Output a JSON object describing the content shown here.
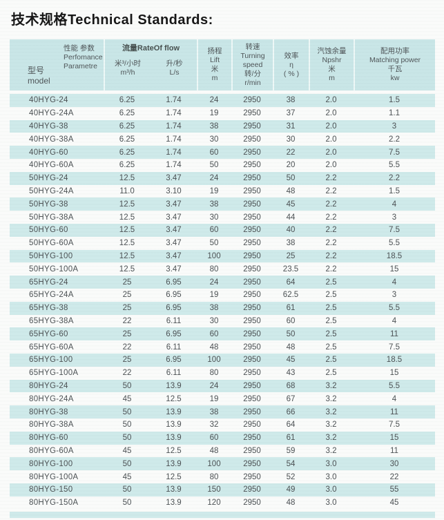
{
  "page_title": "技术规格Technical Standards:",
  "colors": {
    "header_band": "#c9e6e7",
    "row_shaded": "#cfeaea",
    "page_background": "#fafbfa",
    "text": "#4b5053",
    "title_text": "#161616"
  },
  "table": {
    "header": {
      "performance_zh": "性能 参数",
      "performance_en1": "Perfomance",
      "performance_en2": "Parametre",
      "model_zh": "型号",
      "model_en": "model",
      "flow_group": "流量RateOf flow",
      "flow_m3h_zh": "米³/小时",
      "flow_m3h_en": "m³/h",
      "flow_ls_zh": "升/秒",
      "flow_ls_en": "L/s",
      "lift_zh": "扬程",
      "lift_en": "Lift",
      "lift_unit_zh": "米",
      "lift_unit_en": "m",
      "speed_zh": "转速",
      "speed_en": "Turning speed",
      "speed_unit_zh": "转/分",
      "speed_unit_en": "r/min",
      "eta_zh": "效率",
      "eta_symbol": "η",
      "eta_unit": "( % )",
      "npshr_zh": "汽蚀余量",
      "npshr_en": "Npshr",
      "npshr_unit_zh": "米",
      "npshr_unit_en": "m",
      "power_zh": "配用功率",
      "power_en": "Matching power",
      "power_unit_zh": "千瓦",
      "power_unit_en": "kw"
    },
    "columns": [
      "model",
      "m3h",
      "ls",
      "lift",
      "speed",
      "eta",
      "npshr",
      "power"
    ],
    "rows": [
      [
        "40HYG-24",
        "6.25",
        "1.74",
        "24",
        "2950",
        "38",
        "2.0",
        "1.5"
      ],
      [
        "40HYG-24A",
        "6.25",
        "1.74",
        "19",
        "2950",
        "37",
        "2.0",
        "1.1"
      ],
      [
        "40HYG-38",
        "6.25",
        "1.74",
        "38",
        "2950",
        "31",
        "2.0",
        "3"
      ],
      [
        "40HYG-38A",
        "6.25",
        "1.74",
        "30",
        "2950",
        "30",
        "2.0",
        "2.2"
      ],
      [
        "40HYG-60",
        "6.25",
        "1.74",
        "60",
        "2950",
        "22",
        "2.0",
        "7.5"
      ],
      [
        "40HYG-60A",
        "6.25",
        "1.74",
        "50",
        "2950",
        "20",
        "2.0",
        "5.5"
      ],
      [
        "50HYG-24",
        "12.5",
        "3.47",
        "24",
        "2950",
        "50",
        "2.2",
        "2.2"
      ],
      [
        "50HYG-24A",
        "11.0",
        "3.10",
        "19",
        "2950",
        "48",
        "2.2",
        "1.5"
      ],
      [
        "50HYG-38",
        "12.5",
        "3.47",
        "38",
        "2950",
        "45",
        "2.2",
        "4"
      ],
      [
        "50HYG-38A",
        "12.5",
        "3.47",
        "30",
        "2950",
        "44",
        "2.2",
        "3"
      ],
      [
        "50HYG-60",
        "12.5",
        "3.47",
        "60",
        "2950",
        "40",
        "2.2",
        "7.5"
      ],
      [
        "50HYG-60A",
        "12.5",
        "3.47",
        "50",
        "2950",
        "38",
        "2.2",
        "5.5"
      ],
      [
        "50HYG-100",
        "12.5",
        "3.47",
        "100",
        "2950",
        "25",
        "2.2",
        "18.5"
      ],
      [
        "50HYG-100A",
        "12.5",
        "3.47",
        "80",
        "2950",
        "23.5",
        "2.2",
        "15"
      ],
      [
        "65HYG-24",
        "25",
        "6.95",
        "24",
        "2950",
        "64",
        "2.5",
        "4"
      ],
      [
        "65HYG-24A",
        "25",
        "6.95",
        "19",
        "2950",
        "62.5",
        "2.5",
        "3"
      ],
      [
        "65HYG-38",
        "25",
        "6.95",
        "38",
        "2950",
        "61",
        "2.5",
        "5.5"
      ],
      [
        "65HYG-38A",
        "22",
        "6.11",
        "30",
        "2950",
        "60",
        "2.5",
        "4"
      ],
      [
        "65HYG-60",
        "25",
        "6.95",
        "60",
        "2950",
        "50",
        "2.5",
        "11"
      ],
      [
        "65HYG-60A",
        "22",
        "6.11",
        "48",
        "2950",
        "48",
        "2.5",
        "7.5"
      ],
      [
        "65HYG-100",
        "25",
        "6.95",
        "100",
        "2950",
        "45",
        "2.5",
        "18.5"
      ],
      [
        "65HYG-100A",
        "22",
        "6.11",
        "80",
        "2950",
        "43",
        "2.5",
        "15"
      ],
      [
        "80HYG-24",
        "50",
        "13.9",
        "24",
        "2950",
        "68",
        "3.2",
        "5.5"
      ],
      [
        "80HYG-24A",
        "45",
        "12.5",
        "19",
        "2950",
        "67",
        "3.2",
        "4"
      ],
      [
        "80HYG-38",
        "50",
        "13.9",
        "38",
        "2950",
        "66",
        "3.2",
        "11"
      ],
      [
        "80HYG-38A",
        "50",
        "13.9",
        "32",
        "2950",
        "64",
        "3.2",
        "7.5"
      ],
      [
        "80HYG-60",
        "50",
        "13.9",
        "60",
        "2950",
        "61",
        "3.2",
        "15"
      ],
      [
        "80HYG-60A",
        "45",
        "12.5",
        "48",
        "2950",
        "59",
        "3.2",
        "11"
      ],
      [
        "80HYG-100",
        "50",
        "13.9",
        "100",
        "2950",
        "54",
        "3.0",
        "30"
      ],
      [
        "80HYG-100A",
        "45",
        "12.5",
        "80",
        "2950",
        "52",
        "3.0",
        "22"
      ],
      [
        "80HYG-150",
        "50",
        "13.9",
        "150",
        "2950",
        "49",
        "3.0",
        "55"
      ],
      [
        "80HYG-150A",
        "50",
        "13.9",
        "120",
        "2950",
        "48",
        "3.0",
        "45"
      ]
    ]
  }
}
